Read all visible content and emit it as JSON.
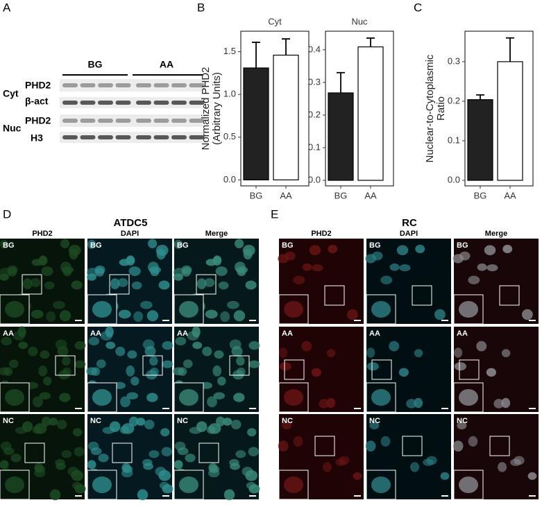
{
  "panels": {
    "a": "A",
    "b": "B",
    "c": "C",
    "d": "D",
    "e": "E"
  },
  "blot": {
    "groups": [
      "BG",
      "AA"
    ],
    "fractions": [
      "Cyt",
      "Nuc"
    ],
    "proteins": [
      [
        "PHD2",
        "β-act"
      ],
      [
        "PHD2",
        "H3"
      ]
    ]
  },
  "chart_data": [
    {
      "type": "bar",
      "title": "Cyt",
      "ylabel": [
        "Normalized PHD2",
        "(Arbitrary Units)"
      ],
      "categories": [
        "BG",
        "AA"
      ],
      "values": [
        1.31,
        1.46
      ],
      "errors": [
        0.3,
        0.19
      ],
      "colors": [
        "#222222",
        "#ffffff"
      ],
      "ylim": [
        -0.07,
        1.74
      ],
      "yticks": [
        {
          "value": 0,
          "label": "0.0"
        },
        0.5,
        {
          "value": 1,
          "label": "1.0"
        },
        1.5
      ]
    },
    {
      "type": "bar",
      "title": "Nuc",
      "categories": [
        "BG",
        "AA"
      ],
      "values": [
        0.268,
        0.409
      ],
      "errors": [
        0.062,
        0.027
      ],
      "colors": [
        "#222222",
        "#ffffff"
      ],
      "ylim": [
        -0.017,
        0.457
      ],
      "yticks": [
        {
          "value": 0,
          "label": "0.0"
        },
        0.1,
        0.2,
        0.3,
        0.4
      ]
    },
    {
      "type": "bar",
      "ylabel": [
        "Nuclear-to-Cytoplasmic",
        "Ratio"
      ],
      "categories": [
        "BG",
        "AA"
      ],
      "values": [
        0.204,
        0.3
      ],
      "errors": [
        0.012,
        0.06
      ],
      "colors": [
        "#222222",
        "#ffffff"
      ],
      "ylim": [
        -0.014,
        0.377
      ],
      "yticks": [
        {
          "value": 0,
          "label": "0.0"
        },
        0.1,
        0.2,
        0.3
      ]
    }
  ],
  "microscopy": {
    "columns": [
      "PHD2",
      "DAPI",
      "Merge"
    ],
    "rows": [
      "BG",
      "AA",
      "NC"
    ],
    "panels": [
      {
        "title": "ATDC5"
      },
      {
        "title": "RC"
      }
    ]
  }
}
